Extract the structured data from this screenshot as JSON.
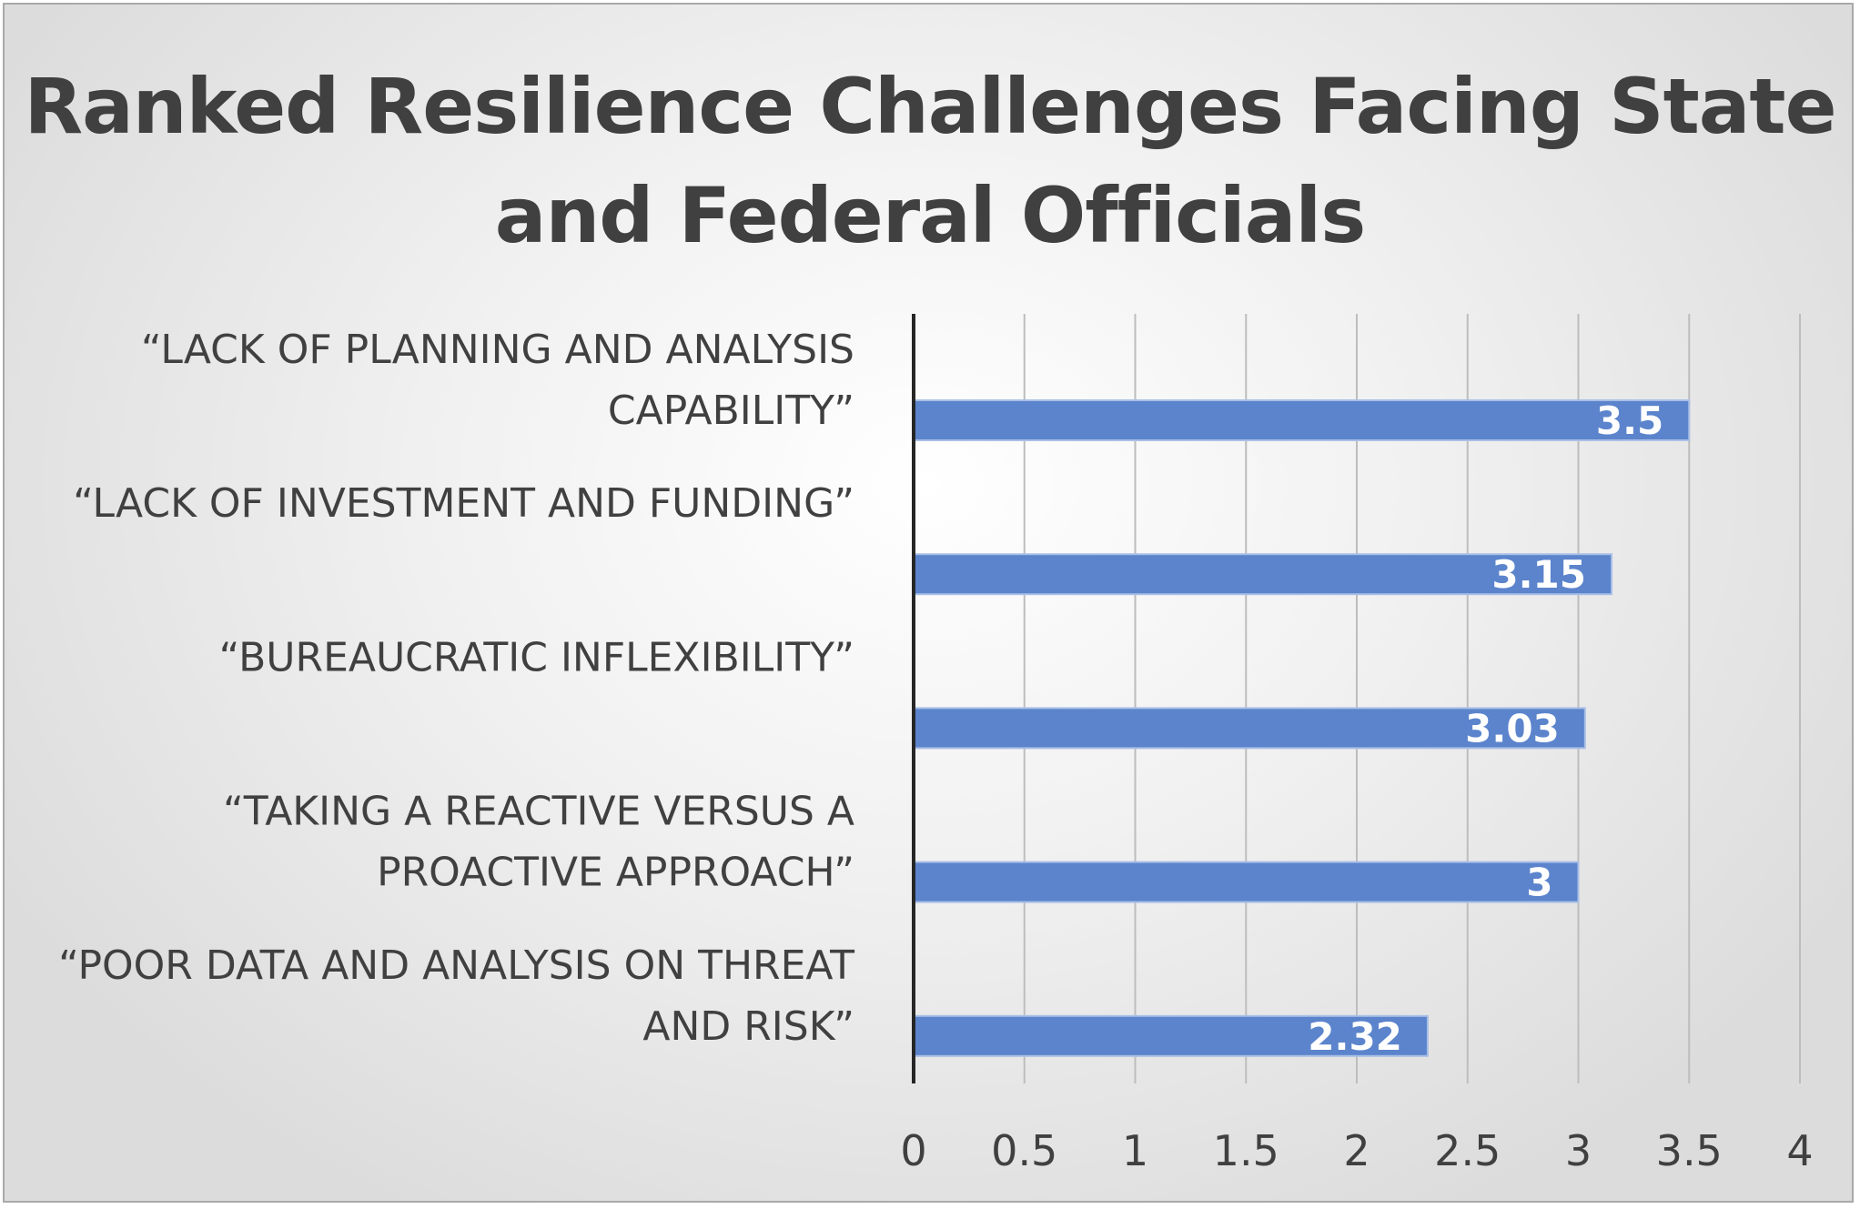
{
  "chart_data": {
    "type": "bar",
    "orientation": "horizontal",
    "title": "Ranked Resilience Challenges Facing State and Federal Officials",
    "categories": [
      [
        "“LACK OF PLANNING AND ANALYSIS",
        "CAPABILITY”"
      ],
      [
        "“LACK OF INVESTMENT AND FUNDING”"
      ],
      [
        "“BUREAUCRATIC INFLEXIBILITY”"
      ],
      [
        "“TAKING A REACTIVE VERSUS A",
        "PROACTIVE APPROACH”"
      ],
      [
        "“POOR DATA AND ANALYSIS ON THREAT",
        "AND RISK”"
      ]
    ],
    "values": [
      3.5,
      3.15,
      3.03,
      3,
      2.32
    ],
    "data_labels": [
      "3.5",
      "3.15",
      "3.03",
      "3",
      "2.32"
    ],
    "xlim": [
      0,
      4
    ],
    "x_ticks": [
      0,
      0.5,
      1,
      1.5,
      2,
      2.5,
      3,
      3.5,
      4
    ],
    "x_tick_labels": [
      "0",
      "0.5",
      "1",
      "1.5",
      "2",
      "2.5",
      "3",
      "3.5",
      "4"
    ],
    "xlabel": "",
    "ylabel": "",
    "grid": "vertical",
    "legend": "none",
    "colors": {
      "bar": "#5b84cc",
      "bar_edge": "#a9bfe6",
      "grid": "#bdbdbd",
      "axis": "#262626",
      "text": "#404040",
      "data_label": "#ffffff"
    }
  }
}
